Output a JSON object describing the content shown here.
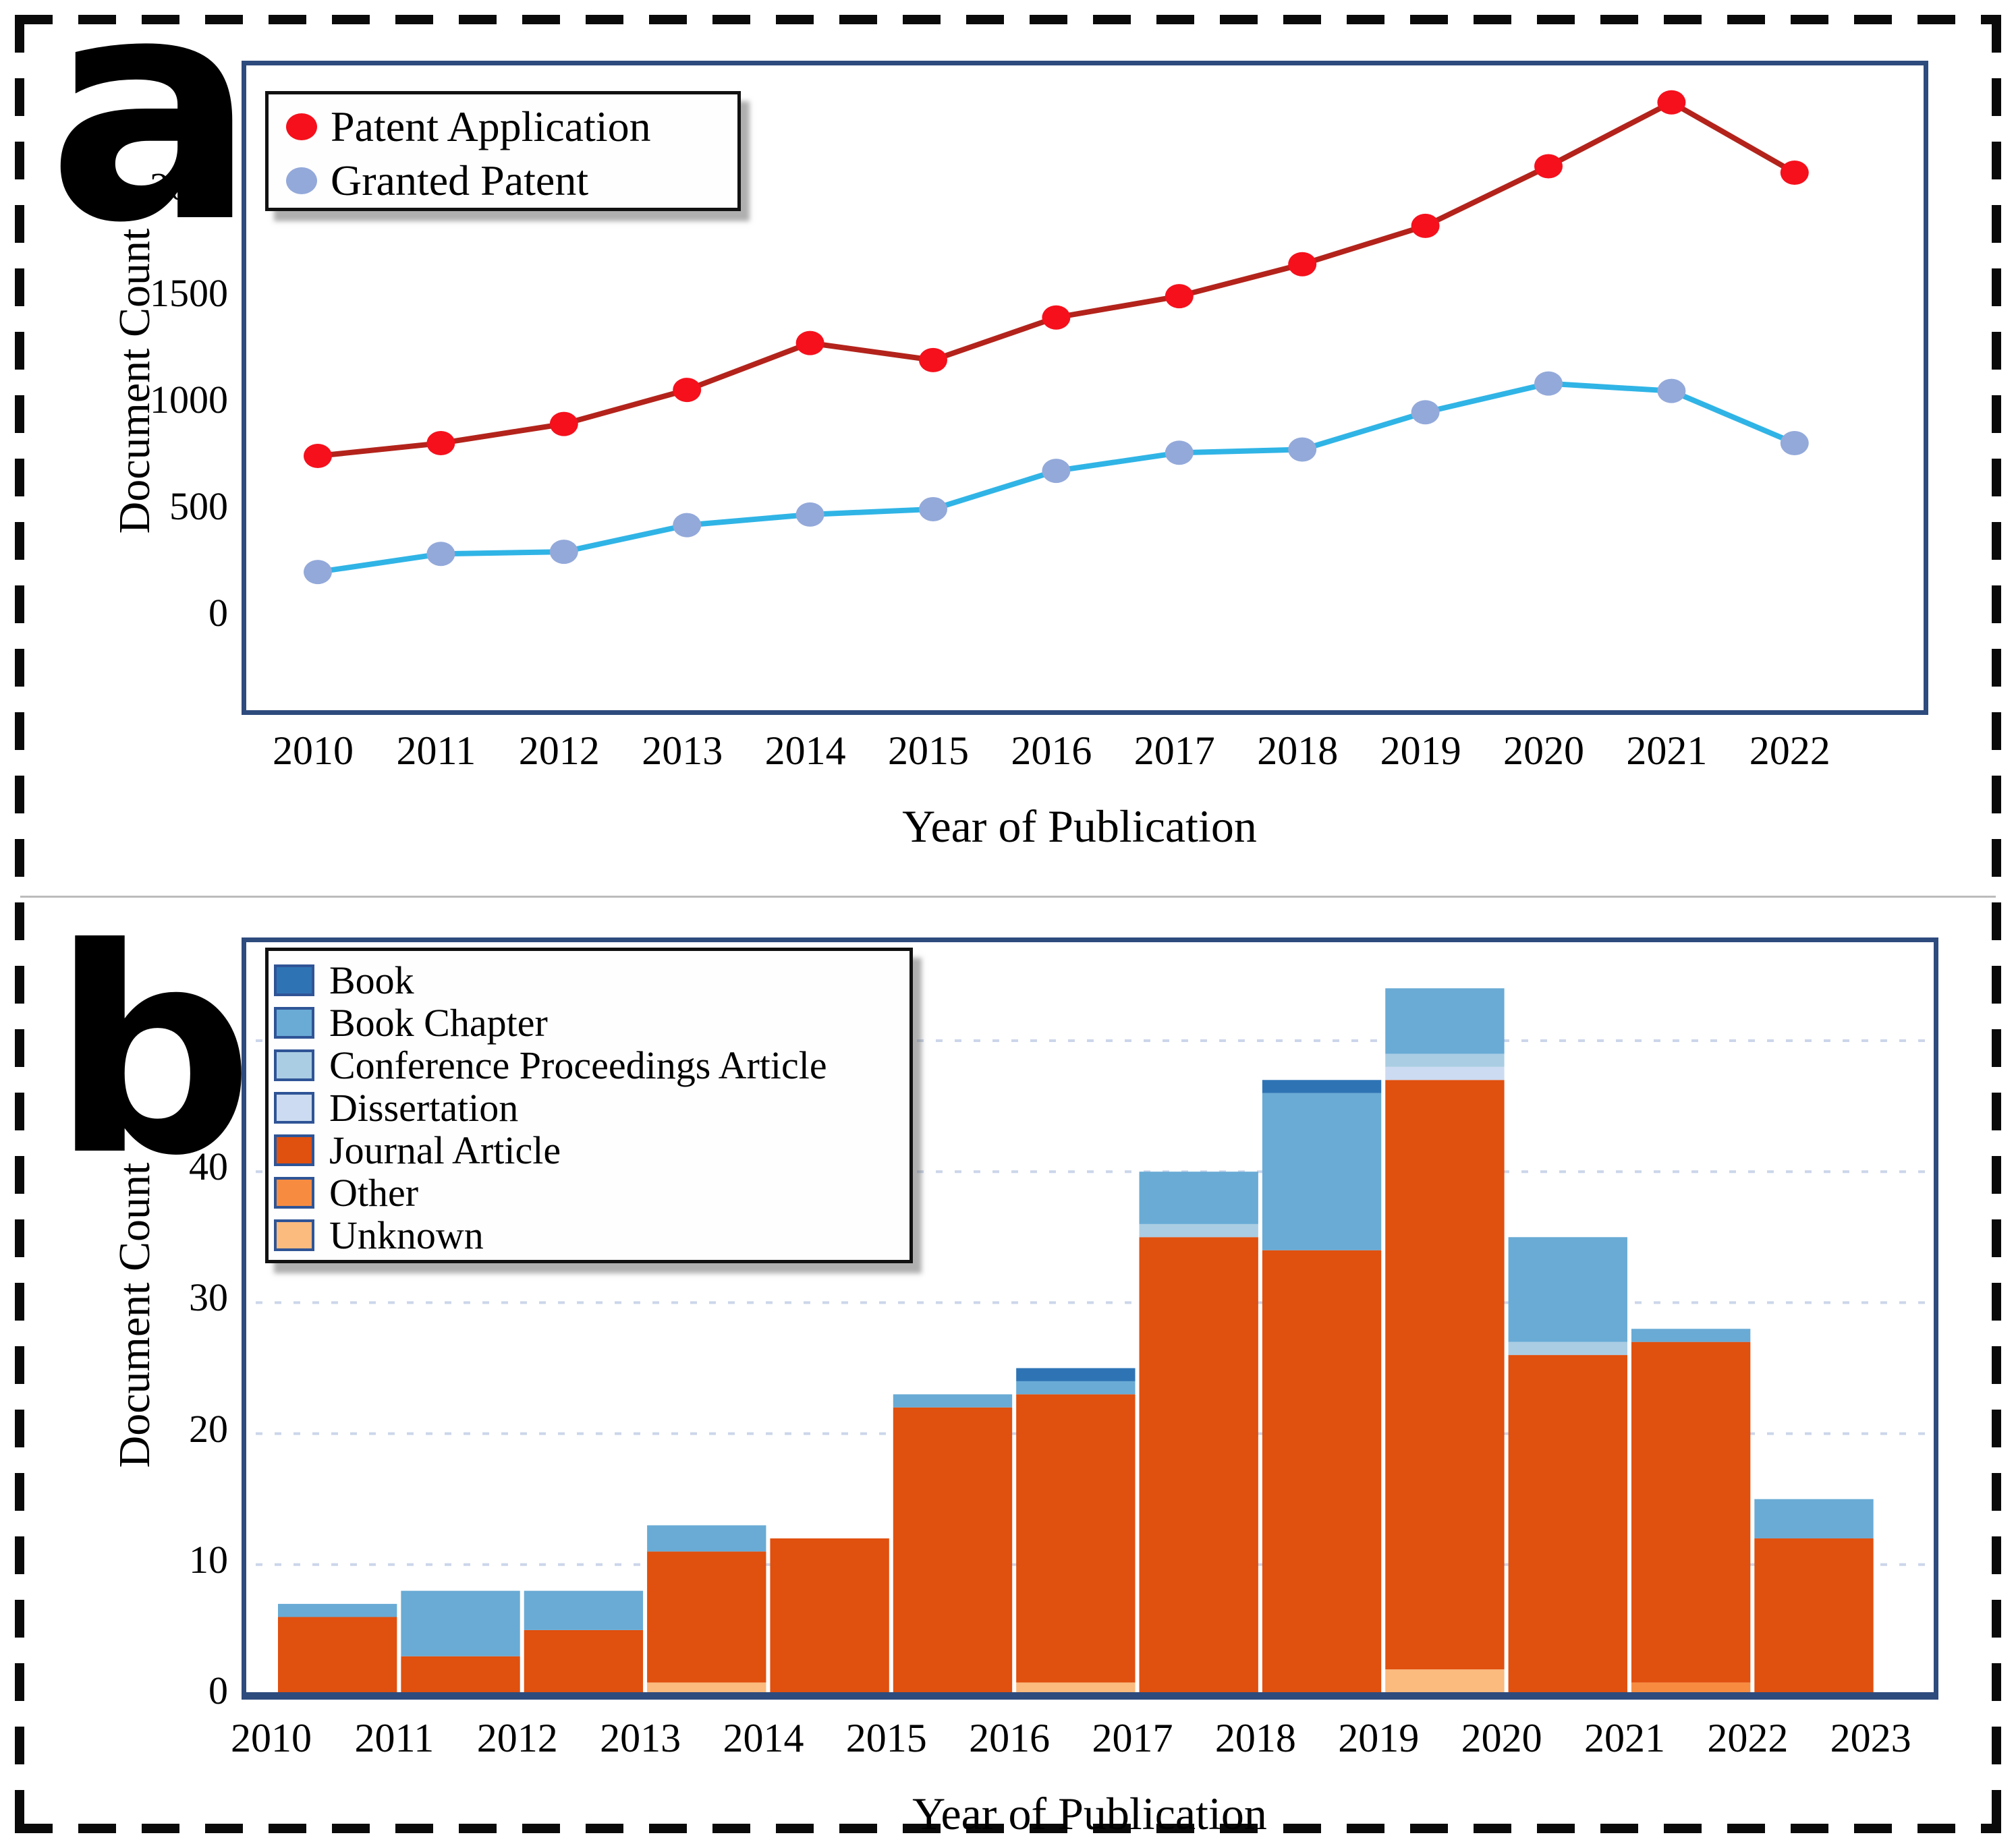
{
  "figure": {
    "panel_a_letter": "a",
    "panel_b_letter": "b"
  },
  "panel_a": {
    "ylabel": "Document Count",
    "xlabel": "Year of Publication",
    "legend": [
      {
        "label": "Patent Application",
        "marker_color": "#f5101c"
      },
      {
        "label": "Granted Patent",
        "marker_color": "#93a9da"
      }
    ]
  },
  "panel_b": {
    "ylabel": "Document Count",
    "xlabel": "Year of Publication",
    "legend": [
      {
        "label": "Book",
        "color": "#2e74b5"
      },
      {
        "label": "Book Chapter",
        "color": "#69abd5"
      },
      {
        "label": "Conference Proceedings Article",
        "color": "#aacde3"
      },
      {
        "label": "Dissertation",
        "color": "#ccdbf1"
      },
      {
        "label": "Journal Article",
        "color": "#e0500f"
      },
      {
        "label": "Other",
        "color": "#f78c41"
      },
      {
        "label": "Unknown",
        "color": "#fbba7e"
      }
    ]
  },
  "chart_data": [
    {
      "type": "line",
      "title": "",
      "xlabel": "Year of Publication",
      "ylabel": "Document Count",
      "x": [
        2010,
        2011,
        2012,
        2013,
        2014,
        2015,
        2016,
        2017,
        2018,
        2019,
        2020,
        2021,
        2022
      ],
      "ylim": [
        0,
        2594
      ],
      "yticks": [
        0,
        500,
        1000,
        1500,
        2000
      ],
      "grid": false,
      "legend_position": "top-left",
      "series": [
        {
          "name": "Patent Application",
          "line_color": "#b3231b",
          "marker_color": "#f5101c",
          "values": [
            760,
            820,
            910,
            1070,
            1290,
            1210,
            1410,
            1510,
            1660,
            1840,
            2120,
            2420,
            2090
          ]
        },
        {
          "name": "Granted Patent",
          "line_color": "#30b4e6",
          "marker_color": "#93a9da",
          "values": [
            215,
            300,
            310,
            435,
            485,
            510,
            690,
            775,
            790,
            965,
            1100,
            1065,
            820
          ]
        }
      ]
    },
    {
      "type": "bar",
      "stacked": true,
      "title": "",
      "xlabel": "Year of Publication",
      "ylabel": "Document Count",
      "categories": [
        2010,
        2011,
        2012,
        2013,
        2014,
        2015,
        2016,
        2017,
        2018,
        2019,
        2020,
        2021,
        2022
      ],
      "xticks": [
        2010,
        2011,
        2012,
        2013,
        2014,
        2015,
        2016,
        2017,
        2018,
        2019,
        2020,
        2021,
        2022,
        2023
      ],
      "ylim": [
        0,
        57.5
      ],
      "yticks": [
        0,
        10,
        20,
        30,
        40,
        50
      ],
      "grid": true,
      "legend_position": "top-left",
      "series": [
        {
          "name": "Unknown",
          "color": "#fbba7e",
          "values": [
            0,
            0,
            0,
            1,
            0,
            0,
            1,
            0,
            0,
            2,
            0,
            0,
            0
          ]
        },
        {
          "name": "Other",
          "color": "#f78c41",
          "values": [
            0,
            0,
            0,
            0,
            0,
            0,
            0,
            0,
            0,
            0,
            0,
            1,
            0
          ]
        },
        {
          "name": "Journal Article",
          "color": "#e0500f",
          "values": [
            6,
            3,
            5,
            10,
            12,
            22,
            22,
            35,
            34,
            45,
            26,
            26,
            12
          ]
        },
        {
          "name": "Dissertation",
          "color": "#ccdbf1",
          "values": [
            0,
            0,
            0,
            0,
            0,
            0,
            0,
            0,
            0,
            1,
            0,
            0,
            0
          ]
        },
        {
          "name": "Conference Proceedings Article",
          "color": "#aacde3",
          "values": [
            0,
            0,
            0,
            0,
            0,
            0,
            0,
            1,
            0,
            1,
            1,
            0,
            0
          ]
        },
        {
          "name": "Book Chapter",
          "color": "#69abd5",
          "values": [
            1,
            5,
            3,
            2,
            0,
            1,
            1,
            4,
            12,
            5,
            8,
            1,
            3
          ]
        },
        {
          "name": "Book",
          "color": "#2e74b5",
          "values": [
            0,
            0,
            0,
            0,
            0,
            0,
            1,
            0,
            1,
            0,
            0,
            0,
            0
          ]
        }
      ],
      "totals": [
        7,
        8,
        8,
        13,
        12,
        23,
        25,
        40,
        47,
        54,
        35,
        28,
        15
      ]
    }
  ]
}
